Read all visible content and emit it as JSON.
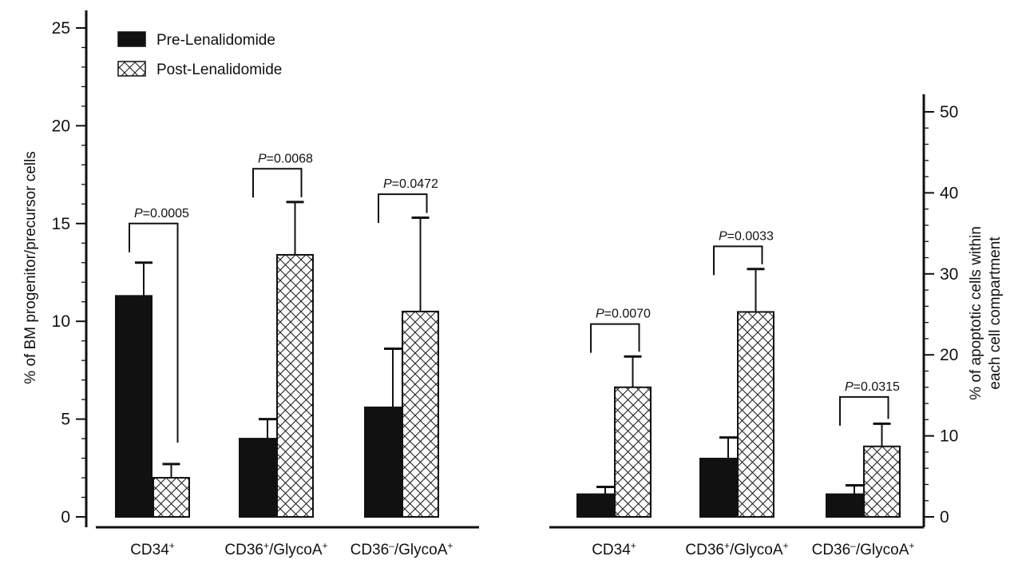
{
  "chart_data": [
    {
      "type": "bar",
      "ylabel": "% of BM progenitor/precursor cells",
      "ylim": [
        0,
        25
      ],
      "yticks": [
        "0",
        "5",
        "10",
        "15",
        "20",
        "25"
      ],
      "categories": [
        "CD34+",
        "CD36+/GlycoA+",
        "CD36–/GlycoA+"
      ],
      "category_labels": [
        {
          "base": "CD34",
          "sup": "+",
          "mid": "",
          "sup2": ""
        },
        {
          "base": "CD36",
          "sup": "+",
          "mid": "/GlycoA",
          "sup2": "+"
        },
        {
          "base": "CD36",
          "sup": "–",
          "mid": "/GlycoA",
          "sup2": "+"
        }
      ],
      "series": [
        {
          "name": "Pre-Lenalidomide",
          "values": [
            11.3,
            4.0,
            5.6
          ],
          "errors": [
            1.7,
            1.0,
            3.0
          ]
        },
        {
          "name": "Post-Lenalidomide",
          "values": [
            2.0,
            13.4,
            10.5
          ],
          "errors": [
            0.7,
            2.7,
            4.8
          ]
        }
      ],
      "pvalues": [
        {
          "text": "=0.0005",
          "y": 15.0
        },
        {
          "text": "=0.0068",
          "y": 17.8
        },
        {
          "text": "=0.0472",
          "y": 16.5
        }
      ],
      "legend": {
        "position": "top-left"
      }
    },
    {
      "type": "bar",
      "ylabel_line1": "% of apoptotic cells within",
      "ylabel_line2": "each cell compartment",
      "ylim": [
        0,
        50
      ],
      "yticks": [
        "0",
        "10",
        "20",
        "30",
        "40",
        "50"
      ],
      "y_axis_side": "right",
      "categories": [
        "CD34+",
        "CD36+/GlycoA+",
        "CD36–/GlycoA+"
      ],
      "category_labels": [
        {
          "base": "CD34",
          "sup": "+",
          "mid": "",
          "sup2": ""
        },
        {
          "base": "CD36",
          "sup": "+",
          "mid": "/GlycoA",
          "sup2": "+"
        },
        {
          "base": "CD36",
          "sup": "–",
          "mid": "/GlycoA",
          "sup2": "+"
        }
      ],
      "series": [
        {
          "name": "Pre-Lenalidomide",
          "values": [
            2.8,
            7.2,
            2.8
          ],
          "errors": [
            0.9,
            2.6,
            1.1
          ]
        },
        {
          "name": "Post-Lenalidomide",
          "values": [
            16.0,
            25.3,
            8.7
          ],
          "errors": [
            3.8,
            5.3,
            2.8
          ]
        }
      ],
      "pvalues": [
        {
          "text": "=0.0070",
          "y": 23.8
        },
        {
          "text": "=0.0033",
          "y": 33.4
        },
        {
          "text": "=0.0315",
          "y": 14.8
        }
      ]
    }
  ],
  "pvalue_prefix": "P",
  "colors": {
    "pre": "#111111",
    "post_fill": "#ffffff",
    "hatch": "#222222",
    "axis": "#111111"
  }
}
